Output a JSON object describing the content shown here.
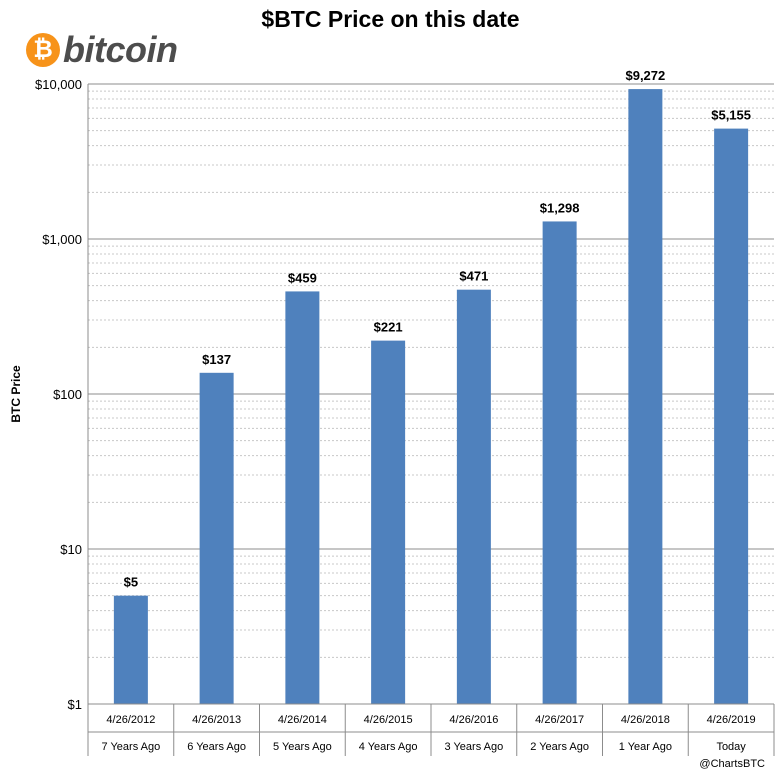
{
  "brand": {
    "coin_symbol": "₿",
    "wordmark": "bitcoin",
    "coin_color": "#f7931a"
  },
  "credit": "@ChartsBTC",
  "chart_data": {
    "type": "bar",
    "title": "$BTC Price on this date",
    "ylabel": "BTC Price",
    "xlabel": "",
    "yscale": "log",
    "ylim": [
      1,
      10000
    ],
    "yticks": [
      1,
      10,
      100,
      1000,
      10000
    ],
    "ytick_labels": [
      "$1",
      "$10",
      "$100",
      "$1,000",
      "$10,000"
    ],
    "grid": true,
    "bar_color": "#4f81bd",
    "categories": [
      "4/26/2012",
      "4/26/2013",
      "4/26/2014",
      "4/26/2015",
      "4/26/2016",
      "4/26/2017",
      "4/26/2018",
      "4/26/2019"
    ],
    "subcategories": [
      "7 Years Ago",
      "6 Years Ago",
      "5 Years Ago",
      "4 Years Ago",
      "3 Years Ago",
      "2 Years Ago",
      "1 Year Ago",
      "Today"
    ],
    "values": [
      5,
      137,
      459,
      221,
      471,
      1298,
      9272,
      5155
    ],
    "data_labels": [
      "$5",
      "$137",
      "$459",
      "$221",
      "$471",
      "$1,298",
      "$9,272",
      "$5,155"
    ]
  }
}
